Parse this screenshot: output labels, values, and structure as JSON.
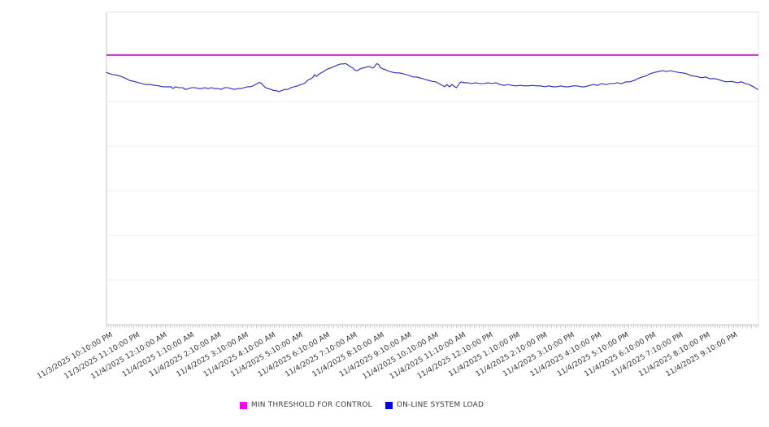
{
  "chart_data": {
    "type": "line",
    "title": "",
    "x_labels": [
      "11/3/2025 10:10:00 PM",
      "11/3/2025 11:10:00 PM",
      "11/4/2025 12:10:00 AM",
      "11/4/2025 1:10:00 AM",
      "11/4/2025 2:10:00 AM",
      "11/4/2025 3:10:00 AM",
      "11/4/2025 4:10:00 AM",
      "11/4/2025 5:10:00 AM",
      "11/4/2025 6:10:00 AM",
      "11/4/2025 7:10:00 AM",
      "11/4/2025 8:10:00 AM",
      "11/4/2025 9:10:00 AM",
      "11/4/2025 10:10:00 AM",
      "11/4/2025 11:10:00 AM",
      "11/4/2025 12:10:00 PM",
      "11/4/2025 1:10:00 PM",
      "11/4/2025 2:10:00 PM",
      "11/4/2025 3:10:00 PM",
      "11/4/2025 4:10:00 PM",
      "11/4/2025 5:10:00 PM",
      "11/4/2025 6:10:00 PM",
      "11/4/2025 7:10:00 PM",
      "11/4/2025 8:10:00 PM",
      "11/4/2025 9:10:00 PM"
    ],
    "x_minor_tick_count": 287,
    "y_axis": {
      "labels_visible": false,
      "range": [
        0,
        7
      ],
      "gridline_step": 1
    },
    "legend_position": "bottom",
    "grid": true,
    "series": [
      {
        "name": "MIN THRESHOLD FOR CONTROL",
        "kind": "threshold",
        "color": "#c412c4",
        "legend_color": "#ff00ff",
        "value": 6.04
      },
      {
        "name": "ON-LINE SYSTEM LOAD",
        "kind": "line",
        "color": "#2525be",
        "legend_color": "#0000ee",
        "points": [
          [
            0.0,
            5.65
          ],
          [
            0.005,
            5.62
          ],
          [
            0.011,
            5.6
          ],
          [
            0.019,
            5.58
          ],
          [
            0.024,
            5.55
          ],
          [
            0.03,
            5.51
          ],
          [
            0.036,
            5.47
          ],
          [
            0.042,
            5.45
          ],
          [
            0.049,
            5.42
          ],
          [
            0.055,
            5.4
          ],
          [
            0.061,
            5.38
          ],
          [
            0.067,
            5.38
          ],
          [
            0.074,
            5.36
          ],
          [
            0.08,
            5.35
          ],
          [
            0.086,
            5.33
          ],
          [
            0.092,
            5.33
          ],
          [
            0.099,
            5.33
          ],
          [
            0.102,
            5.29
          ],
          [
            0.106,
            5.33
          ],
          [
            0.111,
            5.31
          ],
          [
            0.117,
            5.31
          ],
          [
            0.121,
            5.27
          ],
          [
            0.126,
            5.29
          ],
          [
            0.131,
            5.31
          ],
          [
            0.136,
            5.31
          ],
          [
            0.141,
            5.29
          ],
          [
            0.146,
            5.29
          ],
          [
            0.151,
            5.31
          ],
          [
            0.156,
            5.29
          ],
          [
            0.161,
            5.31
          ],
          [
            0.166,
            5.29
          ],
          [
            0.171,
            5.29
          ],
          [
            0.176,
            5.27
          ],
          [
            0.181,
            5.31
          ],
          [
            0.186,
            5.31
          ],
          [
            0.191,
            5.29
          ],
          [
            0.196,
            5.27
          ],
          [
            0.201,
            5.29
          ],
          [
            0.206,
            5.29
          ],
          [
            0.211,
            5.31
          ],
          [
            0.216,
            5.33
          ],
          [
            0.221,
            5.33
          ],
          [
            0.226,
            5.36
          ],
          [
            0.231,
            5.4
          ],
          [
            0.233,
            5.42
          ],
          [
            0.236,
            5.42
          ],
          [
            0.238,
            5.4
          ],
          [
            0.241,
            5.35
          ],
          [
            0.244,
            5.31
          ],
          [
            0.248,
            5.29
          ],
          [
            0.252,
            5.27
          ],
          [
            0.256,
            5.25
          ],
          [
            0.261,
            5.24
          ],
          [
            0.264,
            5.22
          ],
          [
            0.268,
            5.24
          ],
          [
            0.273,
            5.27
          ],
          [
            0.278,
            5.27
          ],
          [
            0.283,
            5.31
          ],
          [
            0.288,
            5.33
          ],
          [
            0.293,
            5.35
          ],
          [
            0.298,
            5.38
          ],
          [
            0.303,
            5.4
          ],
          [
            0.307,
            5.45
          ],
          [
            0.31,
            5.49
          ],
          [
            0.314,
            5.51
          ],
          [
            0.317,
            5.55
          ],
          [
            0.319,
            5.6
          ],
          [
            0.322,
            5.56
          ],
          [
            0.325,
            5.6
          ],
          [
            0.329,
            5.64
          ],
          [
            0.333,
            5.67
          ],
          [
            0.337,
            5.71
          ],
          [
            0.34,
            5.73
          ],
          [
            0.344,
            5.75
          ],
          [
            0.348,
            5.78
          ],
          [
            0.352,
            5.8
          ],
          [
            0.355,
            5.82
          ],
          [
            0.359,
            5.84
          ],
          [
            0.363,
            5.84
          ],
          [
            0.367,
            5.85
          ],
          [
            0.37,
            5.82
          ],
          [
            0.374,
            5.78
          ],
          [
            0.378,
            5.75
          ],
          [
            0.38,
            5.71
          ],
          [
            0.383,
            5.69
          ],
          [
            0.385,
            5.69
          ],
          [
            0.389,
            5.73
          ],
          [
            0.393,
            5.75
          ],
          [
            0.397,
            5.76
          ],
          [
            0.4,
            5.78
          ],
          [
            0.404,
            5.78
          ],
          [
            0.408,
            5.75
          ],
          [
            0.41,
            5.76
          ],
          [
            0.413,
            5.82
          ],
          [
            0.415,
            5.85
          ],
          [
            0.418,
            5.82
          ],
          [
            0.42,
            5.76
          ],
          [
            0.424,
            5.73
          ],
          [
            0.428,
            5.71
          ],
          [
            0.431,
            5.69
          ],
          [
            0.435,
            5.67
          ],
          [
            0.44,
            5.65
          ],
          [
            0.445,
            5.64
          ],
          [
            0.45,
            5.64
          ],
          [
            0.455,
            5.62
          ],
          [
            0.46,
            5.6
          ],
          [
            0.465,
            5.58
          ],
          [
            0.47,
            5.55
          ],
          [
            0.475,
            5.55
          ],
          [
            0.48,
            5.53
          ],
          [
            0.485,
            5.51
          ],
          [
            0.49,
            5.49
          ],
          [
            0.495,
            5.47
          ],
          [
            0.5,
            5.45
          ],
          [
            0.505,
            5.44
          ],
          [
            0.51,
            5.4
          ],
          [
            0.515,
            5.36
          ],
          [
            0.519,
            5.33
          ],
          [
            0.522,
            5.38
          ],
          [
            0.526,
            5.33
          ],
          [
            0.53,
            5.38
          ],
          [
            0.534,
            5.33
          ],
          [
            0.537,
            5.31
          ],
          [
            0.541,
            5.4
          ],
          [
            0.544,
            5.44
          ],
          [
            0.547,
            5.42
          ],
          [
            0.554,
            5.42
          ],
          [
            0.56,
            5.4
          ],
          [
            0.566,
            5.42
          ],
          [
            0.572,
            5.4
          ],
          [
            0.579,
            5.4
          ],
          [
            0.585,
            5.42
          ],
          [
            0.591,
            5.4
          ],
          [
            0.597,
            5.42
          ],
          [
            0.604,
            5.38
          ],
          [
            0.61,
            5.36
          ],
          [
            0.616,
            5.38
          ],
          [
            0.622,
            5.36
          ],
          [
            0.628,
            5.35
          ],
          [
            0.635,
            5.36
          ],
          [
            0.641,
            5.35
          ],
          [
            0.647,
            5.35
          ],
          [
            0.653,
            5.36
          ],
          [
            0.66,
            5.35
          ],
          [
            0.666,
            5.35
          ],
          [
            0.672,
            5.33
          ],
          [
            0.678,
            5.35
          ],
          [
            0.685,
            5.33
          ],
          [
            0.691,
            5.33
          ],
          [
            0.697,
            5.35
          ],
          [
            0.703,
            5.33
          ],
          [
            0.709,
            5.33
          ],
          [
            0.716,
            5.35
          ],
          [
            0.722,
            5.35
          ],
          [
            0.728,
            5.33
          ],
          [
            0.734,
            5.33
          ],
          [
            0.741,
            5.36
          ],
          [
            0.747,
            5.38
          ],
          [
            0.753,
            5.36
          ],
          [
            0.759,
            5.4
          ],
          [
            0.766,
            5.38
          ],
          [
            0.772,
            5.4
          ],
          [
            0.778,
            5.4
          ],
          [
            0.784,
            5.42
          ],
          [
            0.79,
            5.4
          ],
          [
            0.797,
            5.44
          ],
          [
            0.803,
            5.44
          ],
          [
            0.809,
            5.47
          ],
          [
            0.815,
            5.51
          ],
          [
            0.822,
            5.55
          ],
          [
            0.828,
            5.58
          ],
          [
            0.834,
            5.62
          ],
          [
            0.84,
            5.65
          ],
          [
            0.847,
            5.67
          ],
          [
            0.853,
            5.69
          ],
          [
            0.859,
            5.67
          ],
          [
            0.865,
            5.69
          ],
          [
            0.871,
            5.67
          ],
          [
            0.878,
            5.65
          ],
          [
            0.884,
            5.64
          ],
          [
            0.89,
            5.62
          ],
          [
            0.896,
            5.58
          ],
          [
            0.905,
            5.56
          ],
          [
            0.913,
            5.53
          ],
          [
            0.919,
            5.55
          ],
          [
            0.925,
            5.51
          ],
          [
            0.934,
            5.51
          ],
          [
            0.943,
            5.47
          ],
          [
            0.95,
            5.44
          ],
          [
            0.959,
            5.45
          ],
          [
            0.968,
            5.42
          ],
          [
            0.974,
            5.44
          ],
          [
            0.98,
            5.4
          ],
          [
            0.986,
            5.38
          ],
          [
            0.992,
            5.33
          ],
          [
            0.999,
            5.27
          ]
        ]
      }
    ],
    "colors": {
      "gridline": "#ececec",
      "axis": "#c9c9c9",
      "border": "#e3e3e3",
      "tick": "#aaaaaa",
      "label_text": "#333333"
    }
  }
}
